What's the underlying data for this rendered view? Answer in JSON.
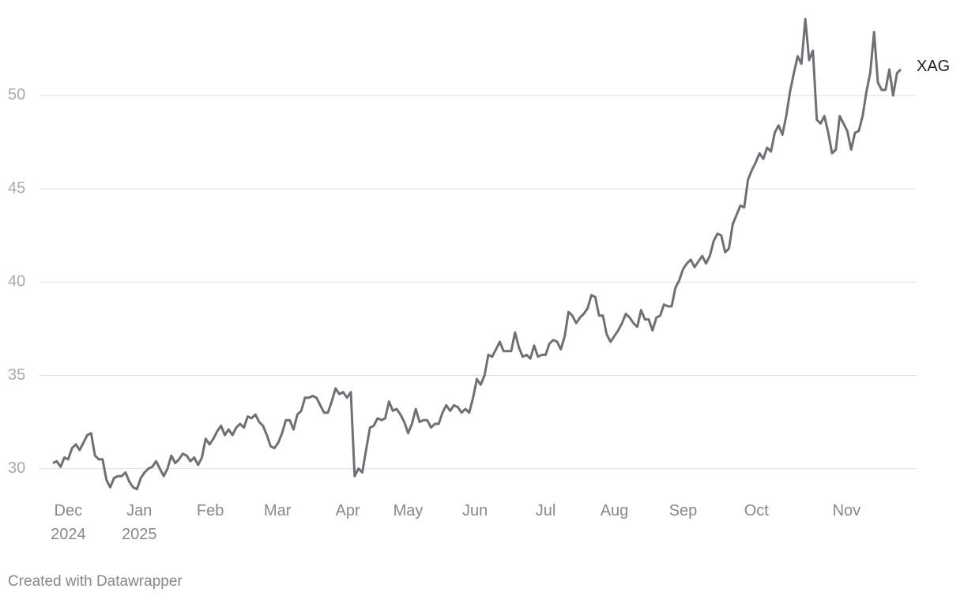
{
  "chart_data": {
    "type": "line",
    "footer": "Created with Datawrapper",
    "series": [
      {
        "name": "XAG",
        "color": "#6e7075",
        "values": [
          30.3,
          30.4,
          30.1,
          30.6,
          30.5,
          31.1,
          31.3,
          31.0,
          31.4,
          31.8,
          31.9,
          30.7,
          30.5,
          30.5,
          29.4,
          29.0,
          29.5,
          29.6,
          29.6,
          29.8,
          29.3,
          29.0,
          28.9,
          29.5,
          29.8,
          30.0,
          30.1,
          30.4,
          30.0,
          29.6,
          30.0,
          30.7,
          30.3,
          30.5,
          30.8,
          30.7,
          30.4,
          30.6,
          30.2,
          30.6,
          31.6,
          31.3,
          31.6,
          32.0,
          32.3,
          31.8,
          32.1,
          31.8,
          32.2,
          32.4,
          32.2,
          32.8,
          32.7,
          32.9,
          32.5,
          32.3,
          31.8,
          31.2,
          31.1,
          31.4,
          31.9,
          32.6,
          32.6,
          32.1,
          32.9,
          33.1,
          33.8,
          33.8,
          33.9,
          33.8,
          33.4,
          33.0,
          33.0,
          33.6,
          34.3,
          34.0,
          34.1,
          33.8,
          34.1,
          29.6,
          30.0,
          29.8,
          31.0,
          32.2,
          32.3,
          32.7,
          32.6,
          32.7,
          33.6,
          33.1,
          33.2,
          32.9,
          32.5,
          31.9,
          32.4,
          33.2,
          32.5,
          32.6,
          32.6,
          32.2,
          32.4,
          32.4,
          33.0,
          33.4,
          33.1,
          33.4,
          33.3,
          33.0,
          33.2,
          33.0,
          33.8,
          34.8,
          34.5,
          35.0,
          36.1,
          36.0,
          36.4,
          36.8,
          36.3,
          36.3,
          36.3,
          37.3,
          36.5,
          36.0,
          36.1,
          35.9,
          36.6,
          36.0,
          36.1,
          36.1,
          36.7,
          36.9,
          36.8,
          36.4,
          37.1,
          38.4,
          38.2,
          37.8,
          38.1,
          38.3,
          38.6,
          39.3,
          39.2,
          38.2,
          38.2,
          37.2,
          36.8,
          37.1,
          37.4,
          37.8,
          38.3,
          38.1,
          37.8,
          37.6,
          38.5,
          38.0,
          38.0,
          37.4,
          38.1,
          38.2,
          38.8,
          38.7,
          38.7,
          39.7,
          40.1,
          40.7,
          41.0,
          41.2,
          40.8,
          41.1,
          41.4,
          41.0,
          41.4,
          42.2,
          42.6,
          42.5,
          41.6,
          41.8,
          43.1,
          43.6,
          44.1,
          44.0,
          45.5,
          46.0,
          46.4,
          46.9,
          46.6,
          47.2,
          47.0,
          48.0,
          48.4,
          47.9,
          48.9,
          50.2,
          51.2,
          52.1,
          51.7,
          54.1,
          51.9,
          52.4,
          48.7,
          48.5,
          48.9,
          48.0,
          46.9,
          47.1,
          48.9,
          48.5,
          48.1,
          47.1,
          48.0,
          48.1,
          48.9,
          50.2,
          51.2,
          53.4,
          50.7,
          50.3,
          50.3,
          51.4,
          50.0,
          51.2,
          51.4
        ]
      }
    ],
    "xlim": [
      0,
      222
    ],
    "xticks": [
      {
        "value": 4,
        "label": "Dec\n2024"
      },
      {
        "value": 22.6,
        "label": "Jan\n2025"
      },
      {
        "value": 41.2,
        "label": "Feb"
      },
      {
        "value": 58.8,
        "label": "Mar"
      },
      {
        "value": 77.2,
        "label": "Apr"
      },
      {
        "value": 93,
        "label": "May"
      },
      {
        "value": 110.5,
        "label": "Jun"
      },
      {
        "value": 129,
        "label": "Jul"
      },
      {
        "value": 147,
        "label": "Aug"
      },
      {
        "value": 165,
        "label": "Sep"
      },
      {
        "value": 184.2,
        "label": "Oct"
      },
      {
        "value": 207.8,
        "label": "Nov"
      }
    ],
    "ylim": [
      28.8,
      54.2
    ],
    "yticks": [
      30,
      35,
      40,
      45,
      50
    ],
    "grid": true
  }
}
